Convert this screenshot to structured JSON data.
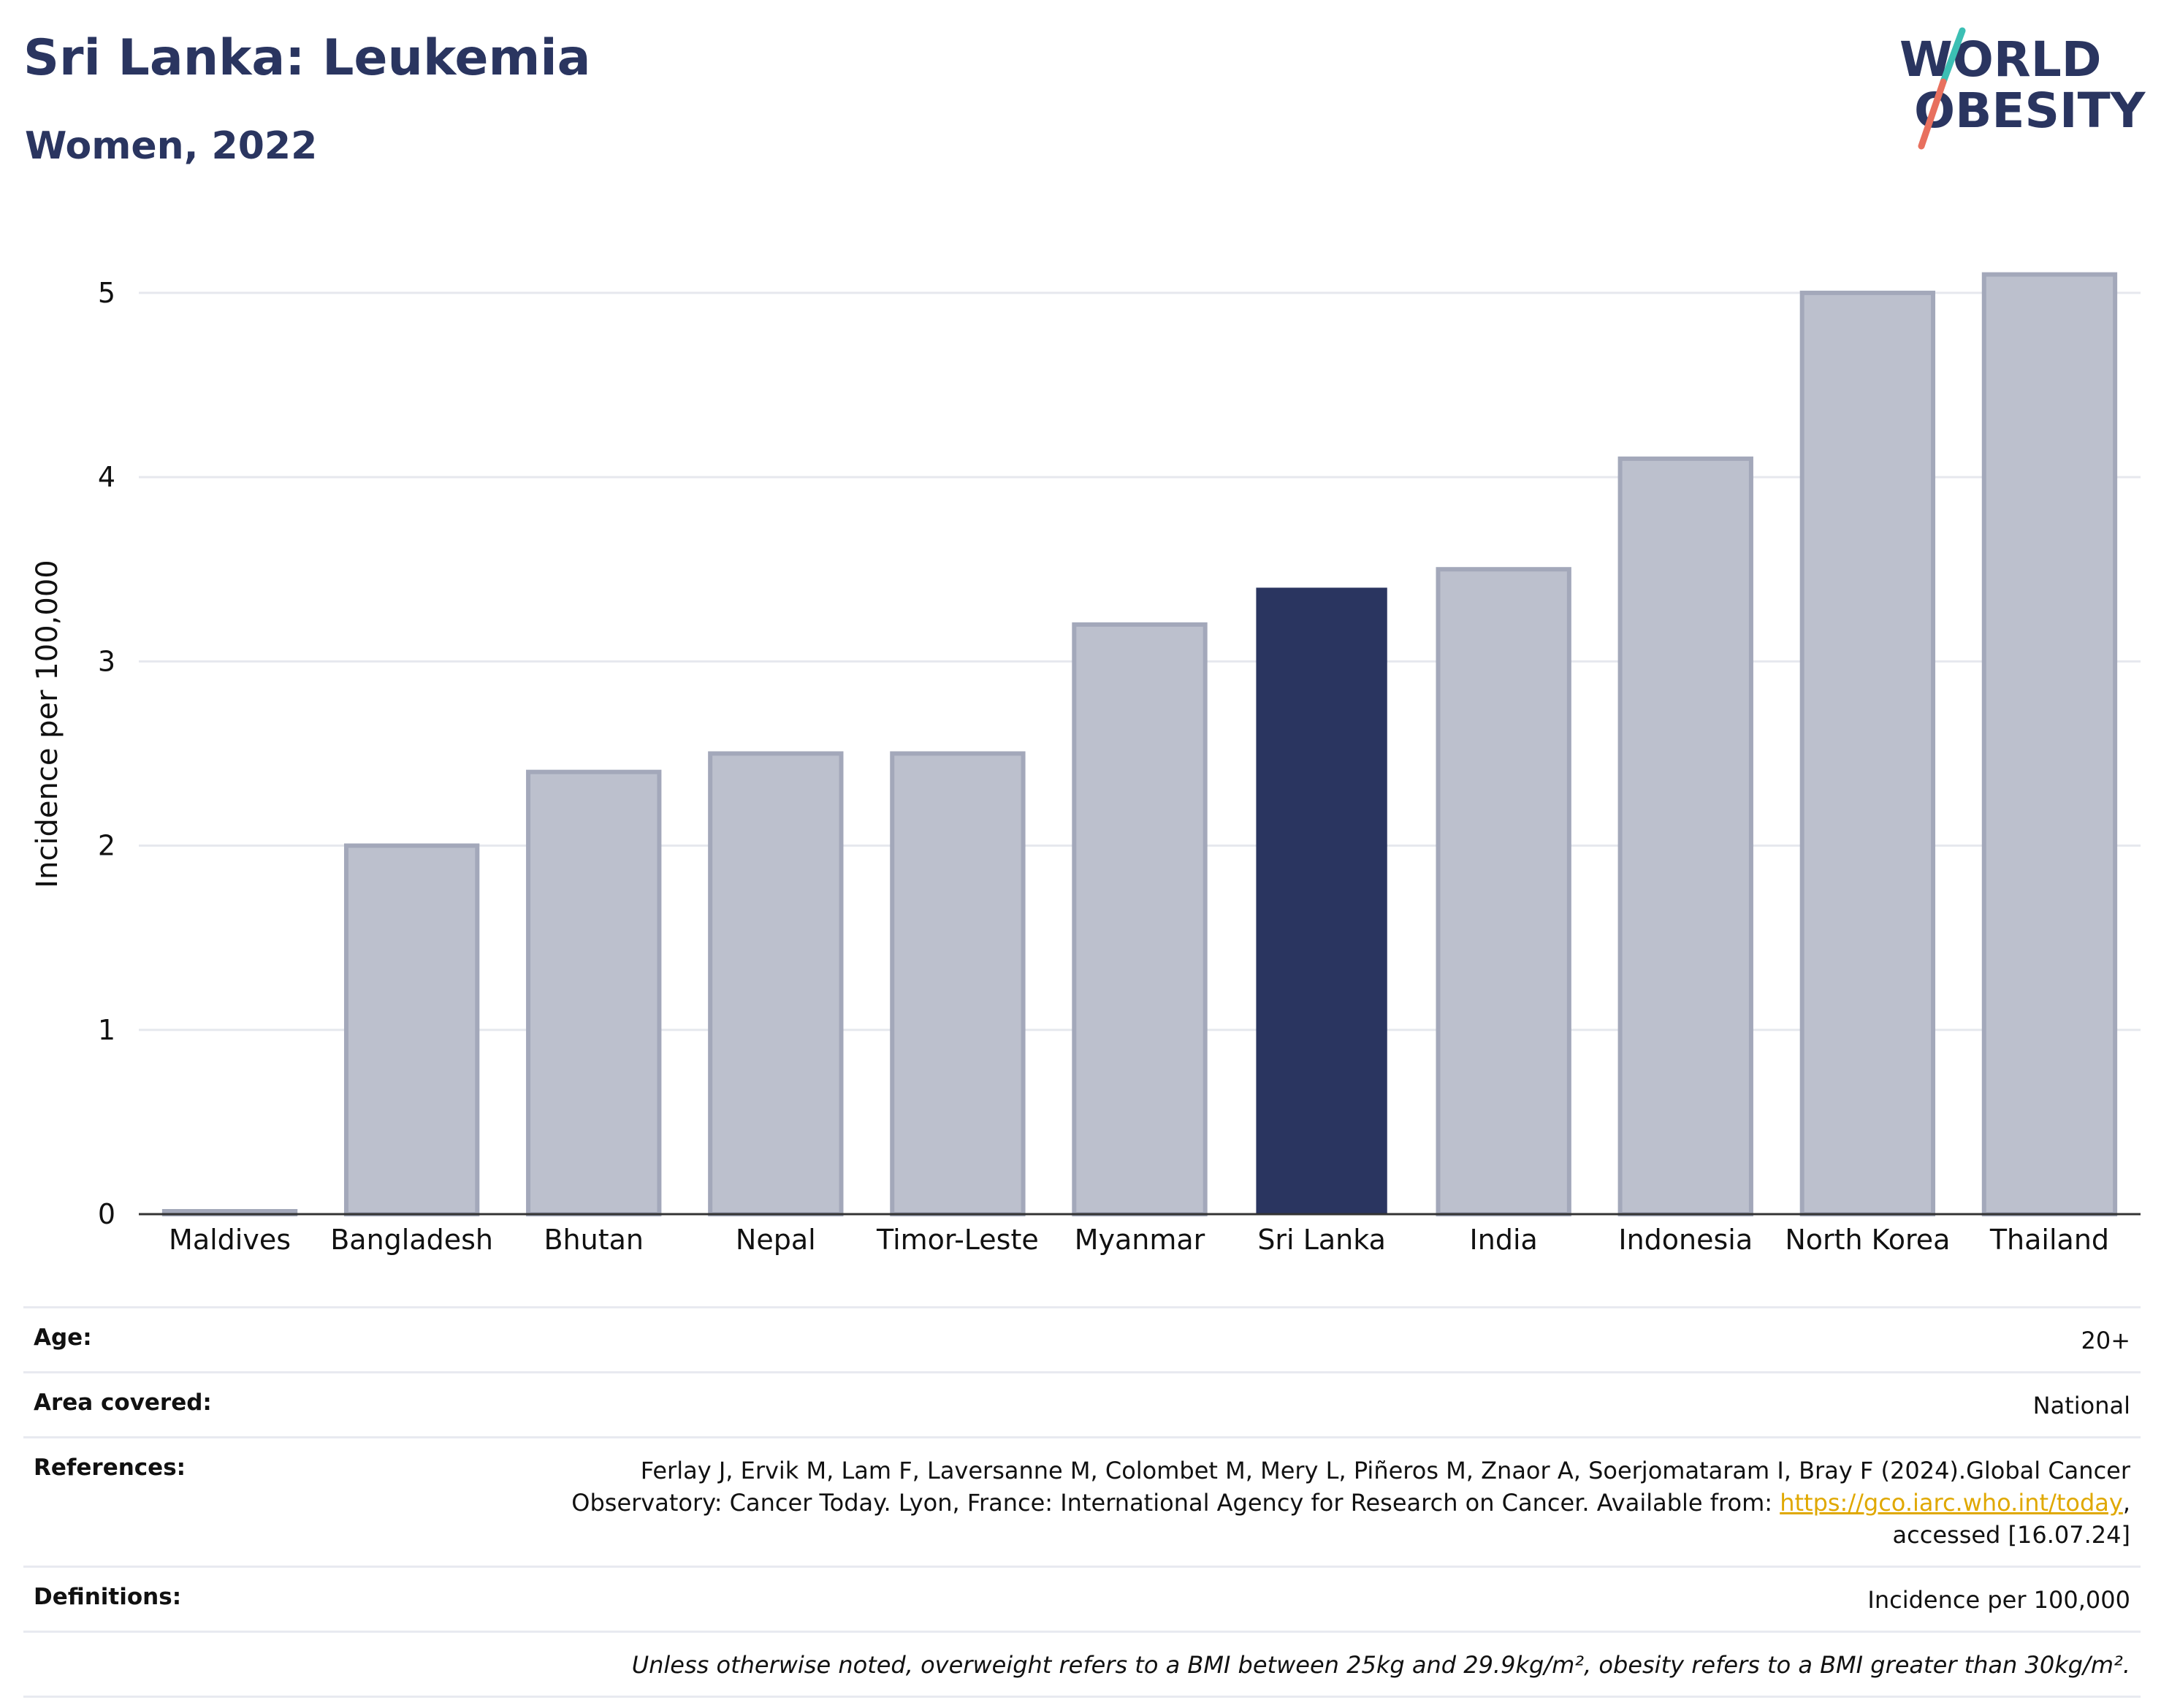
{
  "header": {
    "title": "Sri Lanka: Leukemia",
    "subtitle": "Women, 2022"
  },
  "logo": {
    "line1": "WORLD",
    "line2": "OBESITY"
  },
  "colors": {
    "highlight": "#2a3560",
    "bar": "#bcc0cd",
    "bar_stroke": "#a3a8ba",
    "grid": "#e6e8ee",
    "link": "#e0a800",
    "logo_slash_teal": "#3cbfb4",
    "logo_slash_coral": "#e8705e"
  },
  "chart_data": {
    "type": "bar",
    "categories": [
      "Maldives",
      "Bangladesh",
      "Bhutan",
      "Nepal",
      "Timor-Leste",
      "Myanmar",
      "Sri Lanka",
      "India",
      "Indonesia",
      "North Korea",
      "Thailand"
    ],
    "values": [
      0,
      2.0,
      2.4,
      2.5,
      2.5,
      3.2,
      3.4,
      3.5,
      4.1,
      5.0,
      5.1
    ],
    "highlight": "Sri Lanka",
    "title": "Sri Lanka: Leukemia",
    "subtitle": "Women, 2022",
    "xlabel": "",
    "ylabel": "Incidence per 100,000",
    "ylim": [
      0,
      5.4
    ],
    "yticks": [
      0,
      1,
      2,
      3,
      4,
      5
    ],
    "grid": true,
    "legend": "none"
  },
  "info": {
    "age": {
      "label": "Age:",
      "value": "20+"
    },
    "area": {
      "label": "Area covered:",
      "value": "National"
    },
    "references": {
      "label": "References:",
      "line1": "Ferlay J, Ervik M, Lam F, Laversanne M, Colombet M, Mery L, Piñeros M, Znaor A, Soerjomataram I, Bray F (2024).Global Cancer",
      "line2_prefix": "Observatory: Cancer Today. Lyon, France: International Agency for Research on Cancer. Available from: ",
      "link": "https://gco.iarc.who.int/today",
      "line2_suffix": ",",
      "line3": "accessed [16.07.24]"
    },
    "definitions": {
      "label": "Definitions:",
      "value": "Incidence per 100,000"
    },
    "note": "Unless otherwise noted, overweight refers to a BMI between 25kg and 29.9kg/m², obesity refers to a BMI greater than 30kg/m²."
  }
}
